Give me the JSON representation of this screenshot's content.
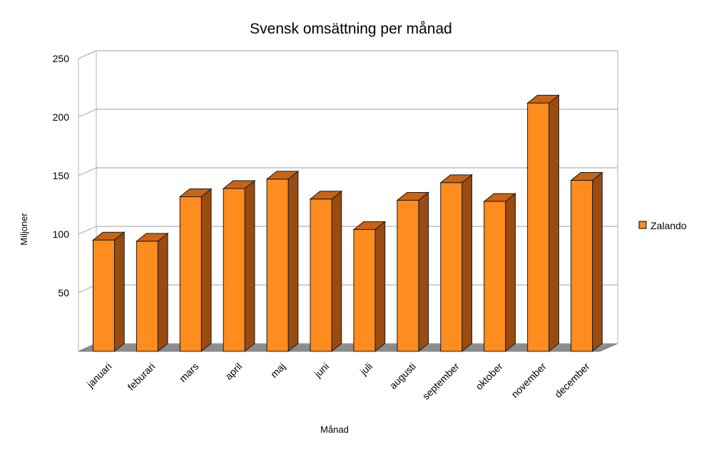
{
  "chart_data": {
    "type": "bar",
    "title": "Svensk omsättning per månad",
    "xlabel": "Månad",
    "ylabel": "Miljoner",
    "categories": [
      "januari",
      "feburari",
      "mars",
      "april",
      "maj",
      "juni",
      "juli",
      "augusti",
      "september",
      "oktober",
      "november",
      "december"
    ],
    "series": [
      {
        "name": "Zalando",
        "values": [
          95,
          94,
          132,
          139,
          147,
          130,
          104,
          129,
          144,
          128,
          212,
          146
        ],
        "color": "#ff8c1f",
        "side_color": "#9a4b10",
        "top_color": "#c86414"
      }
    ],
    "ylim": [
      0,
      250
    ],
    "yticks": [
      50,
      100,
      150,
      200,
      250
    ],
    "grid": true,
    "legend_position": "right",
    "three_d": true
  }
}
